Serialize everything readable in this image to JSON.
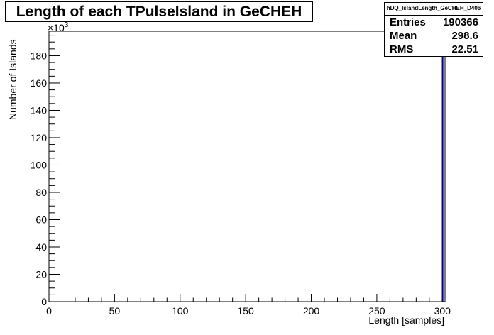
{
  "chart_data": {
    "type": "bar",
    "title": "Length of each TPulseIsland in GeCHEH",
    "xlabel": "Length [samples]",
    "ylabel": "Number of Islands",
    "y_multiplier_label": "×10",
    "y_multiplier_exponent": "3",
    "xlim": [
      0,
      302
    ],
    "ylim": [
      0,
      197.9
    ],
    "x_ticks": [
      0,
      50,
      100,
      150,
      200,
      250,
      300
    ],
    "x_tick_labels": [
      "0",
      "50",
      "100",
      "150",
      "200",
      "250",
      "300"
    ],
    "y_ticks": [
      0,
      20,
      40,
      60,
      80,
      100,
      120,
      140,
      160,
      180
    ],
    "y_tick_labels": [
      "0",
      "20",
      "40",
      "60",
      "80",
      "100",
      "120",
      "140",
      "160",
      "180"
    ],
    "bins": [
      {
        "x_low": 300,
        "x_high": 301,
        "value": 190.4
      }
    ],
    "line_color": "#00007f",
    "stats": {
      "name": "hDQ_IslandLength_GeCHEH_D406",
      "rows": [
        {
          "label": "Entries",
          "value": "190366"
        },
        {
          "label": "Mean",
          "value": "298.6"
        },
        {
          "label": "RMS",
          "value": "22.51"
        }
      ]
    }
  }
}
